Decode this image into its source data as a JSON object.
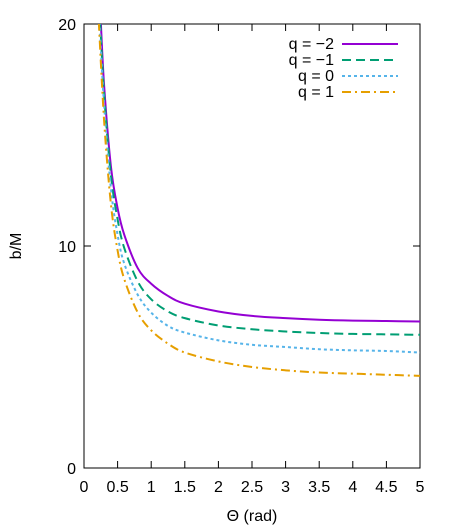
{
  "chart_data": {
    "type": "line",
    "title": "",
    "xlabel": "Θ (rad)",
    "ylabel": "b/M",
    "xlim": [
      0,
      5
    ],
    "ylim": [
      0,
      20
    ],
    "xticks": [
      0,
      0.5,
      1,
      1.5,
      2,
      2.5,
      3,
      3.5,
      4,
      4.5,
      5
    ],
    "xtick_labels": [
      "0",
      "0.5",
      "1",
      "1.5",
      "2",
      "2.5",
      "3",
      "3.5",
      "4",
      "4.5",
      "5"
    ],
    "yticks": [
      0,
      10,
      20
    ],
    "ytick_labels": [
      "0",
      "10",
      "20"
    ],
    "grid": false,
    "legend_position": "top-right",
    "series": [
      {
        "name": "q = −2",
        "color": "#9400d3",
        "dash": "solid",
        "x": [
          0.25,
          0.3,
          0.4,
          0.5,
          0.6,
          0.8,
          1.0,
          1.25,
          1.5,
          2.0,
          2.5,
          3.0,
          3.5,
          4.0,
          4.5,
          5.0
        ],
        "y": [
          20.1,
          17.2,
          13.6,
          11.7,
          10.5,
          9.0,
          8.3,
          7.75,
          7.4,
          7.05,
          6.85,
          6.75,
          6.68,
          6.64,
          6.62,
          6.6
        ]
      },
      {
        "name": "q = −1",
        "color": "#009e73",
        "dash": "dashed",
        "x": [
          0.24,
          0.3,
          0.4,
          0.5,
          0.6,
          0.8,
          1.0,
          1.25,
          1.5,
          2.0,
          2.5,
          3.0,
          3.5,
          4.0,
          4.5,
          5.0
        ],
        "y": [
          20.1,
          16.8,
          13.2,
          11.2,
          9.9,
          8.4,
          7.6,
          7.05,
          6.75,
          6.42,
          6.25,
          6.15,
          6.08,
          6.04,
          6.02,
          6.0
        ]
      },
      {
        "name": "q = 0",
        "color": "#56b4e9",
        "dash": "dotted",
        "x": [
          0.23,
          0.3,
          0.4,
          0.5,
          0.6,
          0.8,
          1.0,
          1.25,
          1.5,
          2.0,
          2.5,
          3.0,
          3.5,
          4.0,
          4.5,
          5.0
        ],
        "y": [
          20.1,
          16.3,
          12.6,
          10.5,
          9.2,
          7.8,
          7.0,
          6.4,
          6.1,
          5.75,
          5.55,
          5.45,
          5.35,
          5.3,
          5.27,
          5.2
        ]
      },
      {
        "name": "q = 1",
        "color": "#e69f00",
        "dash": "dashdot",
        "x": [
          0.22,
          0.3,
          0.4,
          0.5,
          0.6,
          0.8,
          1.0,
          1.25,
          1.5,
          2.0,
          2.5,
          3.0,
          3.5,
          4.0,
          4.5,
          5.0
        ],
        "y": [
          20.1,
          15.6,
          11.9,
          9.8,
          8.5,
          7.0,
          6.2,
          5.6,
          5.2,
          4.8,
          4.55,
          4.4,
          4.3,
          4.25,
          4.2,
          4.15
        ]
      }
    ]
  }
}
